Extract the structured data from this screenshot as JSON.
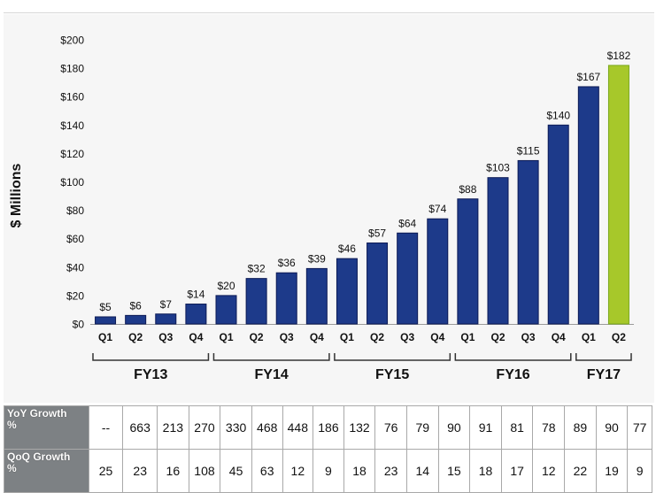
{
  "chart_data": {
    "type": "bar",
    "ylabel": "$ Millions",
    "ylim": [
      0,
      200
    ],
    "yticks": [
      "$0",
      "$20",
      "$40",
      "$60",
      "$80",
      "$100",
      "$120",
      "$140",
      "$160",
      "$180",
      "$200"
    ],
    "colors": {
      "bar": "#1d3a8a",
      "highlight": "#a7c82a",
      "highlight_edge": "#7aa81c",
      "bar_edge": "#0c1a55"
    },
    "bars": [
      {
        "quarter": "Q1",
        "value": 5,
        "label": "$5"
      },
      {
        "quarter": "Q2",
        "value": 6,
        "label": "$6"
      },
      {
        "quarter": "Q3",
        "value": 7,
        "label": "$7"
      },
      {
        "quarter": "Q4",
        "value": 14,
        "label": "$14"
      },
      {
        "quarter": "Q1",
        "value": 20,
        "label": "$20"
      },
      {
        "quarter": "Q2",
        "value": 32,
        "label": "$32"
      },
      {
        "quarter": "Q3",
        "value": 36,
        "label": "$36"
      },
      {
        "quarter": "Q4",
        "value": 39,
        "label": "$39"
      },
      {
        "quarter": "Q1",
        "value": 46,
        "label": "$46"
      },
      {
        "quarter": "Q2",
        "value": 57,
        "label": "$57"
      },
      {
        "quarter": "Q3",
        "value": 64,
        "label": "$64"
      },
      {
        "quarter": "Q4",
        "value": 74,
        "label": "$74"
      },
      {
        "quarter": "Q1",
        "value": 88,
        "label": "$88"
      },
      {
        "quarter": "Q2",
        "value": 103,
        "label": "$103"
      },
      {
        "quarter": "Q3",
        "value": 115,
        "label": "$115"
      },
      {
        "quarter": "Q4",
        "value": 140,
        "label": "$140"
      },
      {
        "quarter": "Q1",
        "value": 167,
        "label": "$167"
      },
      {
        "quarter": "Q2",
        "value": 182,
        "label": "$182",
        "highlight": true
      }
    ],
    "fiscal_years": [
      {
        "label": "FY13",
        "start": 0,
        "end": 3
      },
      {
        "label": "FY14",
        "start": 4,
        "end": 7
      },
      {
        "label": "FY15",
        "start": 8,
        "end": 11
      },
      {
        "label": "FY16",
        "start": 12,
        "end": 15
      },
      {
        "label": "FY17",
        "start": 16,
        "end": 17
      }
    ]
  },
  "growth_table": {
    "rows": [
      {
        "label_line1": "YoY Growth",
        "label_line2": "%",
        "values": [
          "--",
          "663",
          "213",
          "270",
          "330",
          "468",
          "448",
          "186",
          "132",
          "76",
          "79",
          "90",
          "91",
          "81",
          "78",
          "89",
          "90",
          "77"
        ]
      },
      {
        "label_line1": "QoQ Growth",
        "label_line2": "%",
        "values": [
          "25",
          "23",
          "16",
          "108",
          "45",
          "63",
          "12",
          "9",
          "18",
          "23",
          "14",
          "15",
          "18",
          "17",
          "12",
          "22",
          "19",
          "9"
        ]
      }
    ]
  }
}
